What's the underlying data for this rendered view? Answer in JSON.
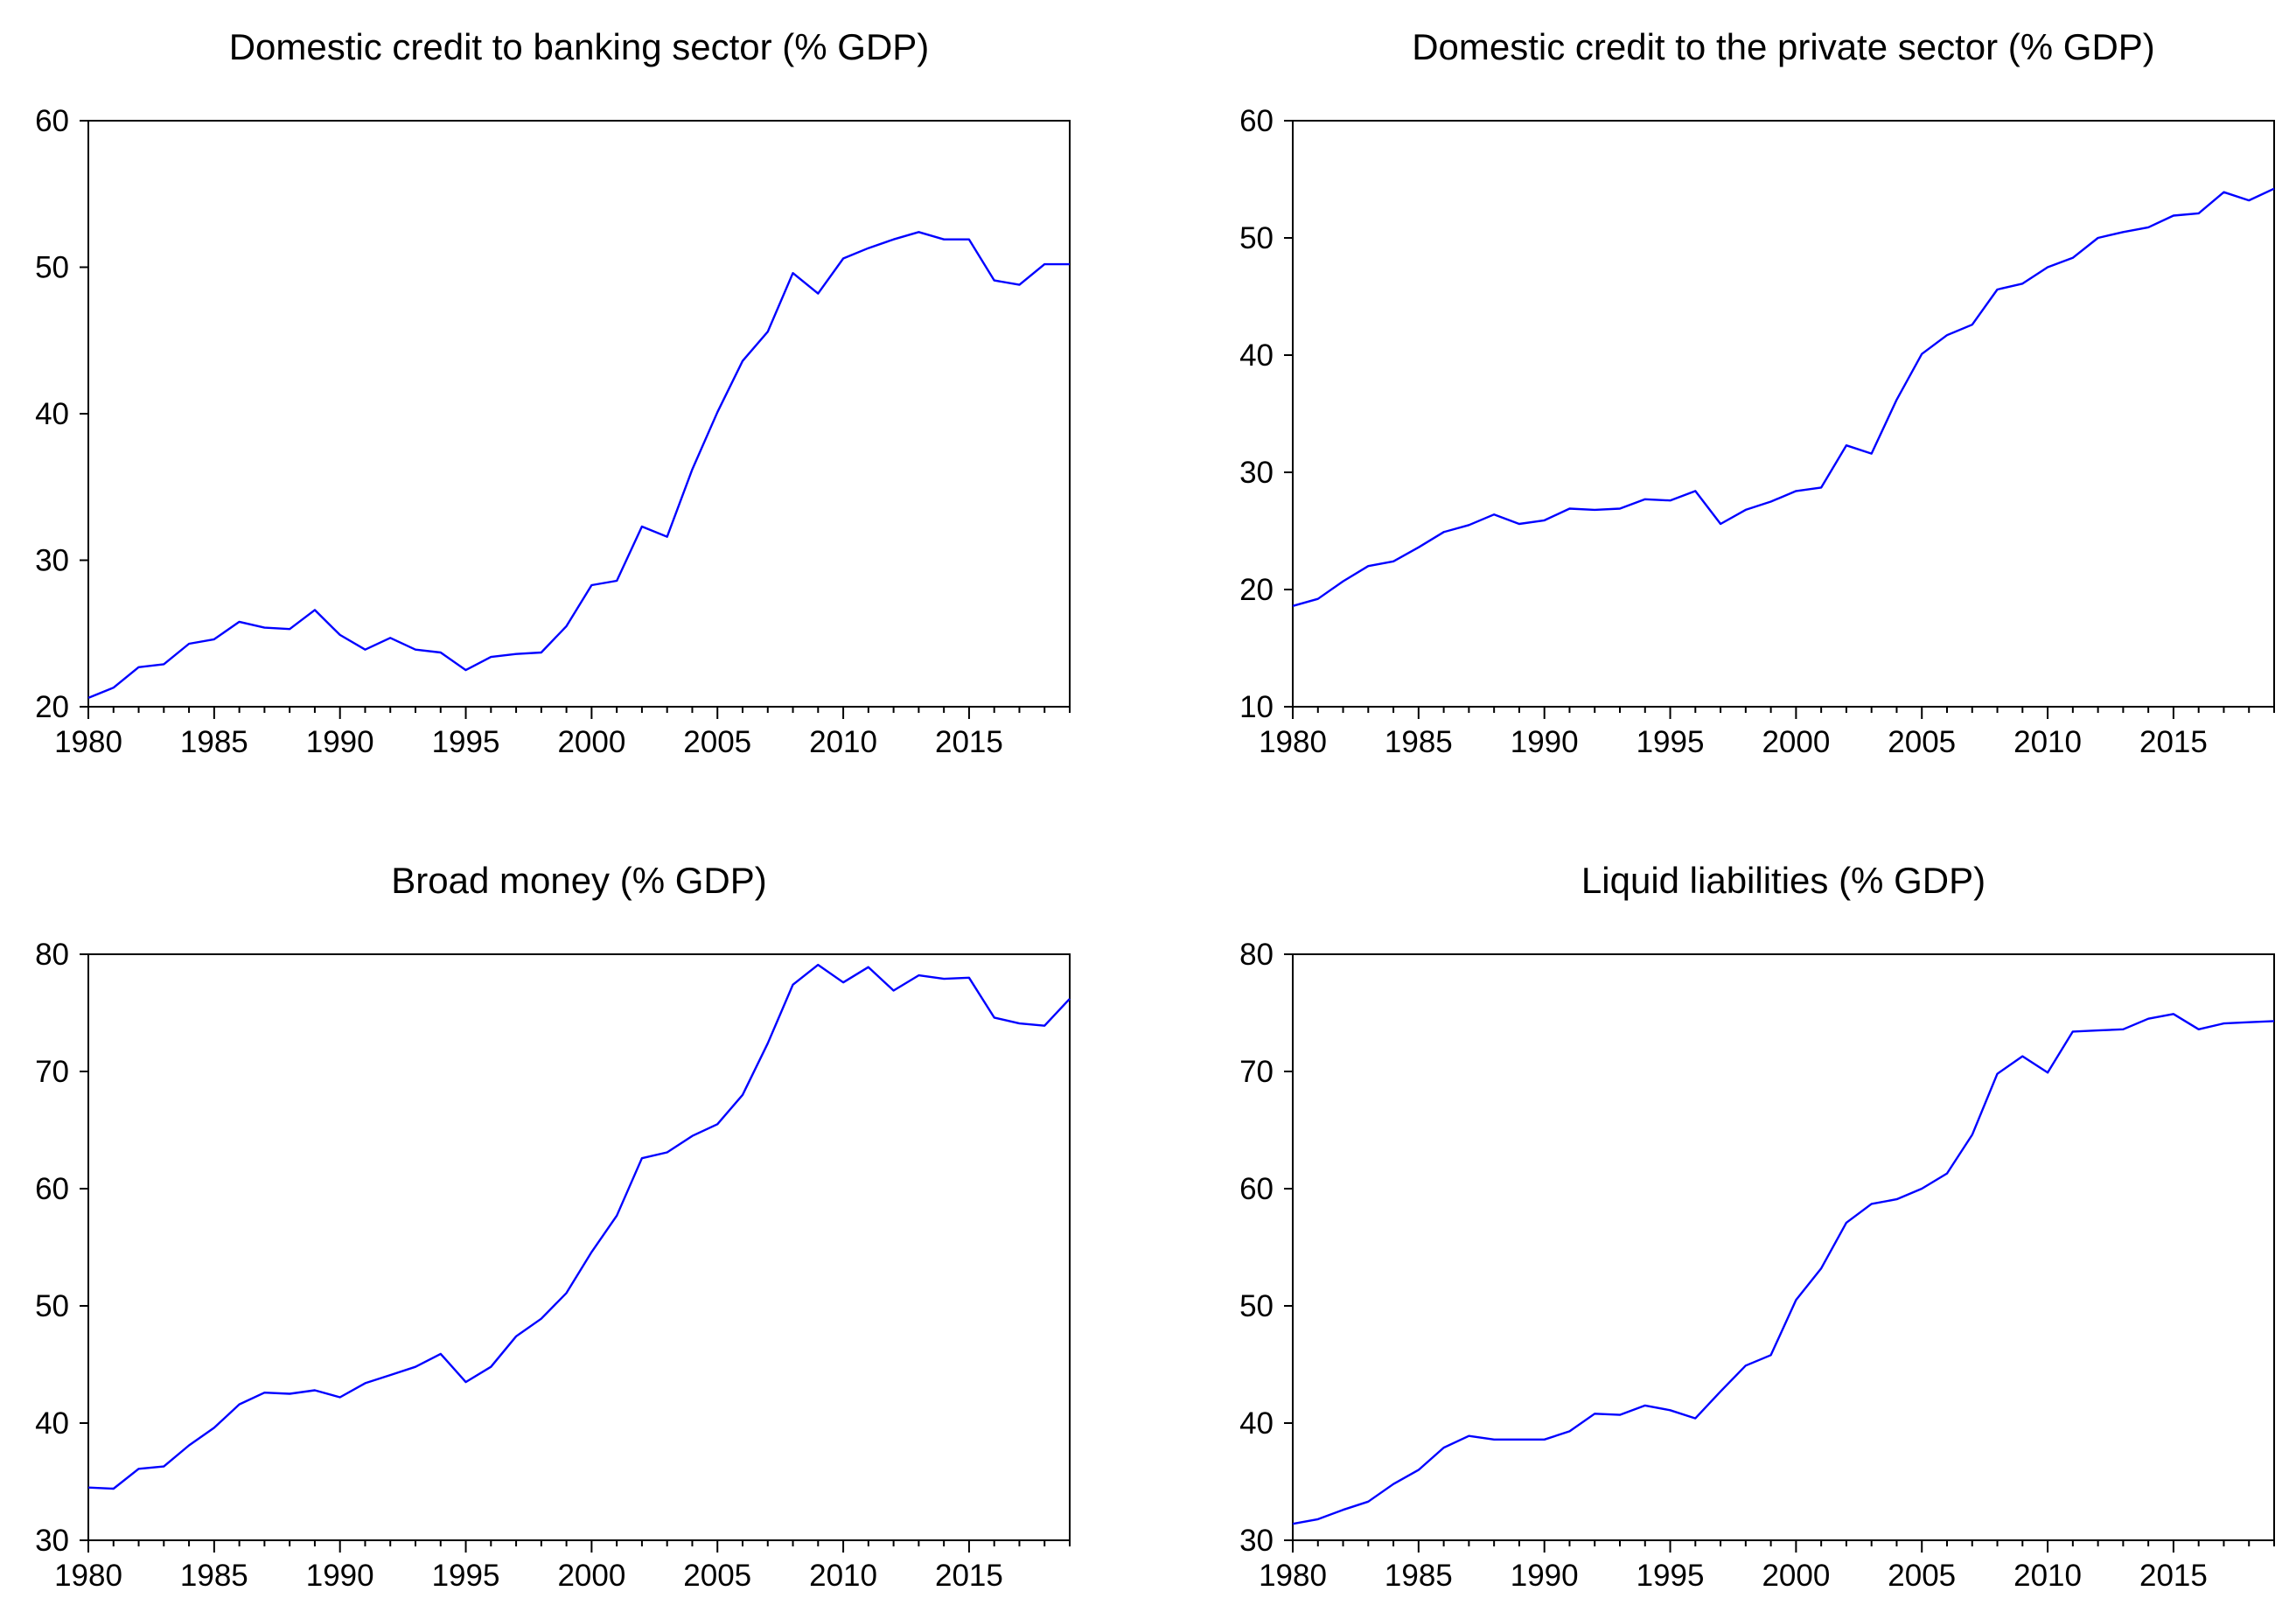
{
  "chart_data": [
    {
      "type": "line",
      "title": "Domestic credit to banking sector (% GDP)",
      "xlabel": "",
      "ylabel": "",
      "xlim": [
        1980,
        2019
      ],
      "ylim": [
        20,
        60
      ],
      "x_ticks": [
        1980,
        1985,
        1990,
        1995,
        2000,
        2005,
        2010,
        2015
      ],
      "y_ticks": [
        20,
        30,
        40,
        50,
        60
      ],
      "grid": false,
      "series": [
        {
          "name": "Domestic credit to banking sector (% GDP)",
          "color": "#0000ff",
          "x": [
            1980,
            1981,
            1982,
            1983,
            1984,
            1985,
            1986,
            1987,
            1988,
            1989,
            1990,
            1991,
            1992,
            1993,
            1994,
            1995,
            1996,
            1997,
            1998,
            1999,
            2000,
            2001,
            2002,
            2003,
            2004,
            2005,
            2006,
            2007,
            2008,
            2009,
            2010,
            2011,
            2012,
            2013,
            2014,
            2015,
            2016,
            2017,
            2018,
            2019
          ],
          "values": [
            20.6,
            21.3,
            22.7,
            22.9,
            24.3,
            24.6,
            25.8,
            25.4,
            25.3,
            26.6,
            24.9,
            23.9,
            24.7,
            23.9,
            23.7,
            22.5,
            23.4,
            23.6,
            23.7,
            25.5,
            28.3,
            28.6,
            32.3,
            31.6,
            36.2,
            40.1,
            43.6,
            45.6,
            49.6,
            48.2,
            50.6,
            51.3,
            51.9,
            52.4,
            51.9,
            51.9,
            49.1,
            48.8,
            50.2,
            50.2
          ]
        }
      ]
    },
    {
      "type": "line",
      "title": "Domestic credit to the private sector (% GDP)",
      "xlabel": "",
      "ylabel": "",
      "xlim": [
        1980,
        2019
      ],
      "ylim": [
        10,
        60
      ],
      "x_ticks": [
        1980,
        1985,
        1990,
        1995,
        2000,
        2005,
        2010,
        2015
      ],
      "y_ticks": [
        10,
        20,
        30,
        40,
        50,
        60
      ],
      "grid": false,
      "series": [
        {
          "name": "Domestic credit to the private sector (% GDP)",
          "color": "#0000ff",
          "x": [
            1980,
            1981,
            1982,
            1983,
            1984,
            1985,
            1986,
            1987,
            1988,
            1989,
            1990,
            1991,
            1992,
            1993,
            1994,
            1995,
            1996,
            1997,
            1998,
            1999,
            2000,
            2001,
            2002,
            2003,
            2004,
            2005,
            2006,
            2007,
            2008,
            2009,
            2010,
            2011,
            2012,
            2013,
            2014,
            2015,
            2016,
            2017,
            2018,
            2019
          ],
          "values": [
            18.6,
            19.2,
            20.7,
            22.0,
            22.4,
            23.6,
            24.9,
            25.5,
            26.4,
            25.6,
            25.9,
            26.9,
            26.8,
            26.9,
            27.7,
            27.6,
            28.4,
            25.6,
            26.8,
            27.5,
            28.4,
            28.7,
            32.3,
            31.6,
            36.2,
            40.1,
            41.7,
            42.6,
            45.6,
            46.1,
            47.5,
            48.3,
            50.0,
            50.5,
            50.9,
            51.9,
            52.1,
            53.9,
            53.2,
            54.2
          ]
        }
      ]
    },
    {
      "type": "line",
      "title": "Broad money (% GDP)",
      "xlabel": "",
      "ylabel": "",
      "xlim": [
        1980,
        2019
      ],
      "ylim": [
        30,
        80
      ],
      "x_ticks": [
        1980,
        1985,
        1990,
        1995,
        2000,
        2005,
        2010,
        2015
      ],
      "y_ticks": [
        30,
        40,
        50,
        60,
        70,
        80
      ],
      "grid": false,
      "series": [
        {
          "name": "Broad money (% GDP)",
          "color": "#0000ff",
          "x": [
            1980,
            1981,
            1982,
            1983,
            1984,
            1985,
            1986,
            1987,
            1988,
            1989,
            1990,
            1991,
            1992,
            1993,
            1994,
            1995,
            1996,
            1997,
            1998,
            1999,
            2000,
            2001,
            2002,
            2003,
            2004,
            2005,
            2006,
            2007,
            2008,
            2009,
            2010,
            2011,
            2012,
            2013,
            2014,
            2015,
            2016,
            2017,
            2018,
            2019
          ],
          "values": [
            34.5,
            34.4,
            36.1,
            36.3,
            38.1,
            39.6,
            41.6,
            42.6,
            42.5,
            42.8,
            42.2,
            43.4,
            44.1,
            44.8,
            45.9,
            43.5,
            44.8,
            47.4,
            48.9,
            51.1,
            54.6,
            57.7,
            62.6,
            63.1,
            64.5,
            65.5,
            68.0,
            72.4,
            77.4,
            79.1,
            77.6,
            78.9,
            76.9,
            78.2,
            77.9,
            78.0,
            74.6,
            74.1,
            73.9,
            76.2
          ]
        }
      ]
    },
    {
      "type": "line",
      "title": "Liquid liabilities (% GDP)",
      "xlabel": "",
      "ylabel": "",
      "xlim": [
        1980,
        2019
      ],
      "ylim": [
        30,
        80
      ],
      "x_ticks": [
        1980,
        1985,
        1990,
        1995,
        2000,
        2005,
        2010,
        2015
      ],
      "y_ticks": [
        30,
        40,
        50,
        60,
        70,
        80
      ],
      "grid": false,
      "series": [
        {
          "name": "Liquid liabilities (% GDP)",
          "color": "#0000ff",
          "x": [
            1980,
            1981,
            1982,
            1983,
            1984,
            1985,
            1986,
            1987,
            1988,
            1989,
            1990,
            1991,
            1992,
            1993,
            1994,
            1995,
            1996,
            1997,
            1998,
            1999,
            2000,
            2001,
            2002,
            2003,
            2004,
            2005,
            2006,
            2007,
            2008,
            2009,
            2010,
            2011,
            2012,
            2013,
            2014,
            2015,
            2016,
            2017,
            2018,
            2019
          ],
          "values": [
            31.4,
            31.8,
            32.6,
            33.3,
            34.8,
            36.0,
            37.9,
            38.9,
            38.6,
            38.6,
            38.6,
            39.3,
            40.8,
            40.7,
            41.5,
            41.1,
            40.4,
            42.7,
            44.9,
            45.8,
            50.5,
            53.2,
            57.1,
            58.7,
            59.1,
            60.0,
            61.3,
            64.6,
            69.8,
            71.3,
            69.9,
            73.4,
            73.5,
            73.6,
            74.5,
            74.9,
            73.6,
            74.1,
            74.2,
            74.3
          ]
        }
      ]
    }
  ]
}
